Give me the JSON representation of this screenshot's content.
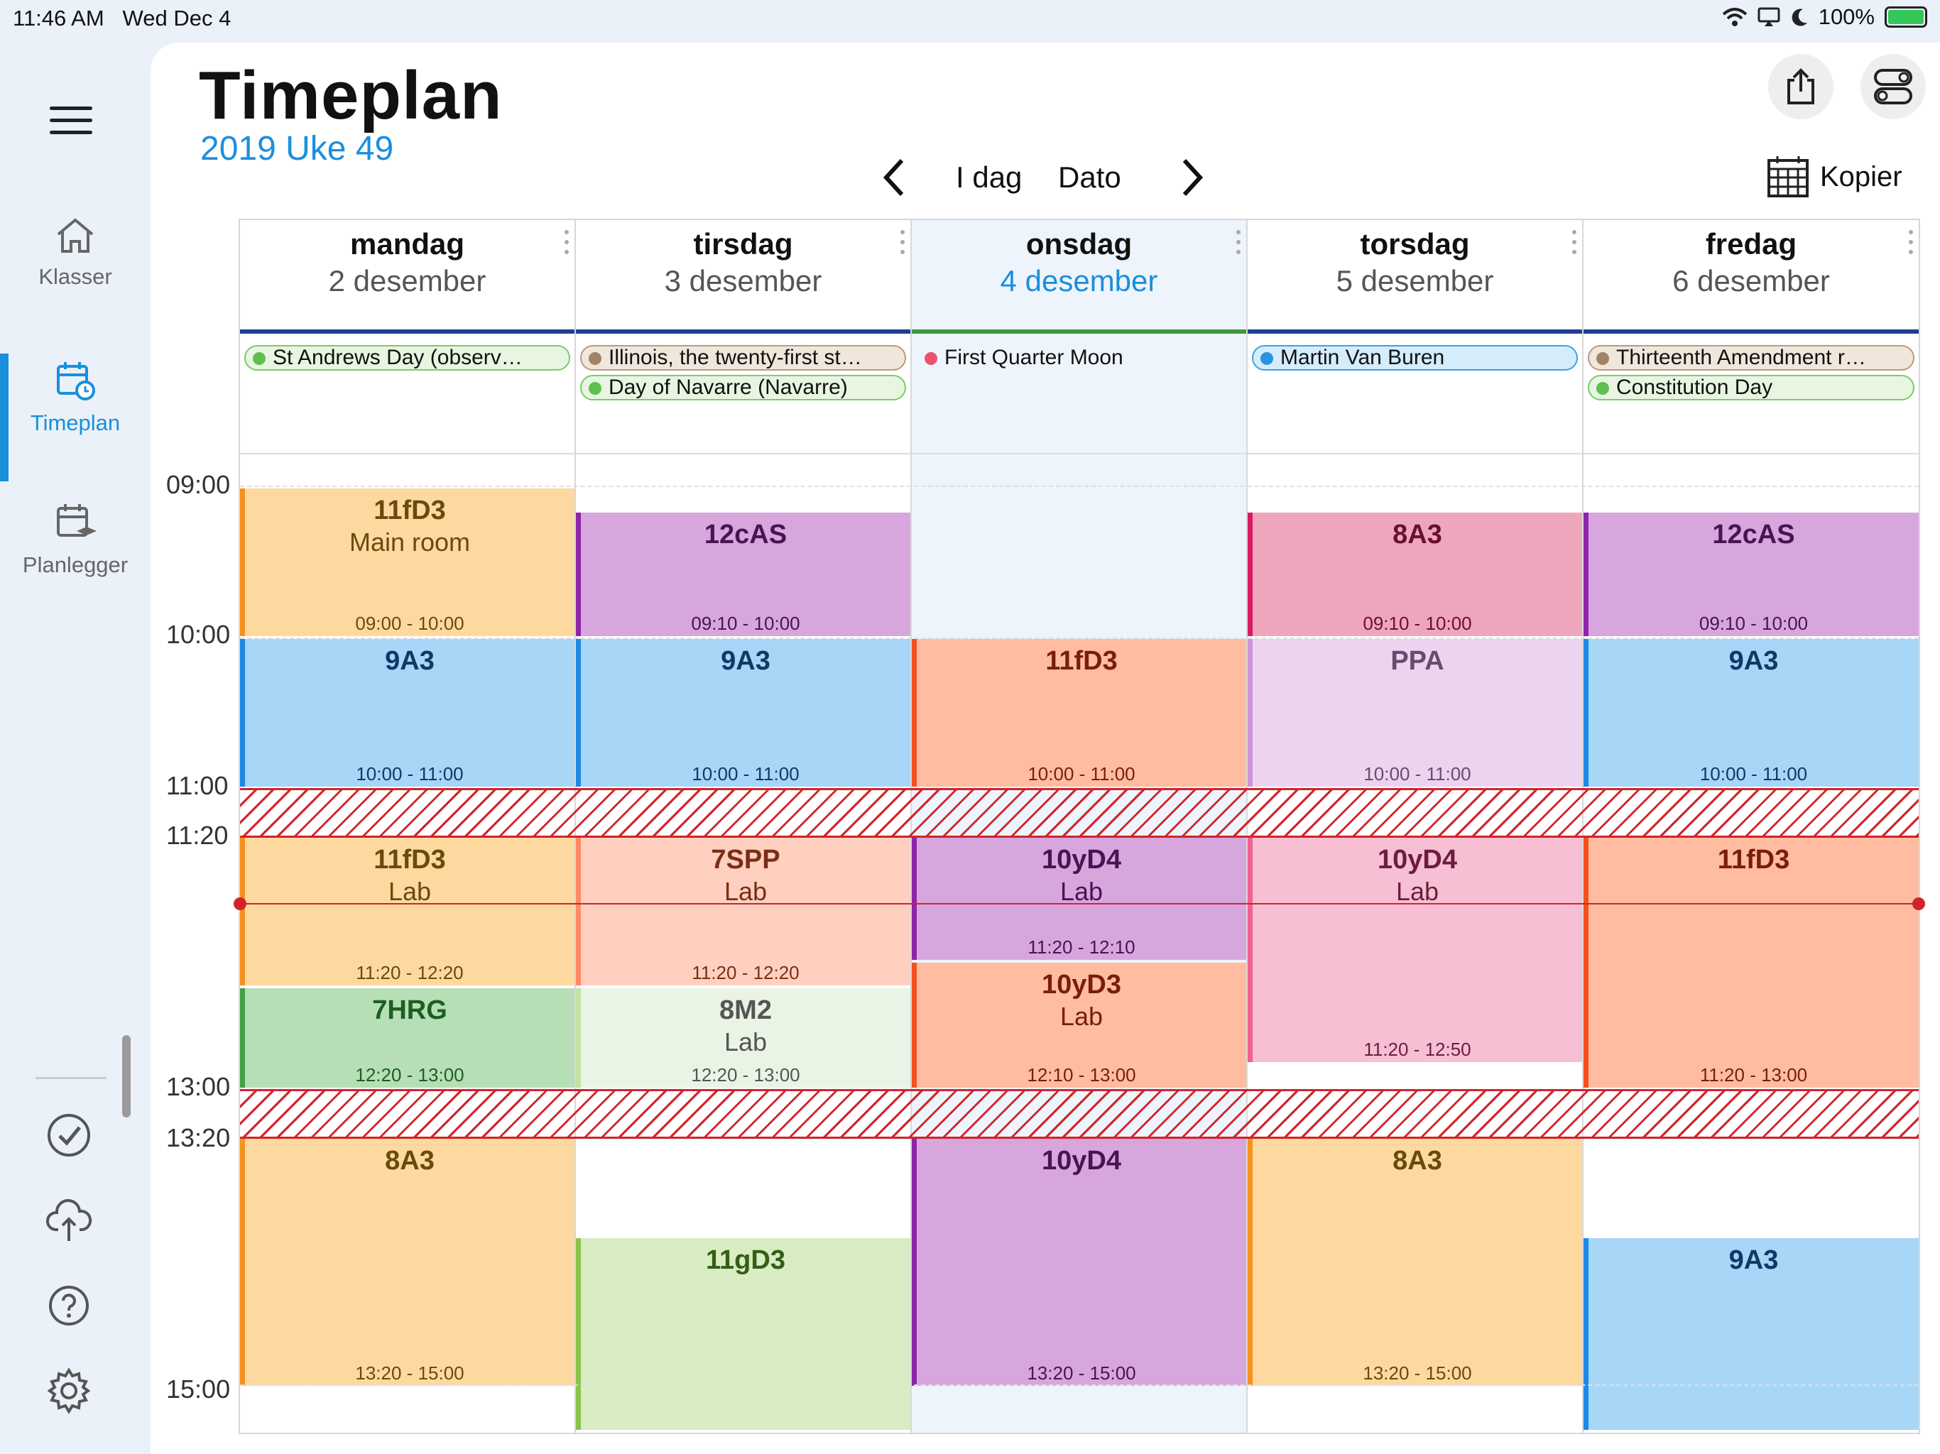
{
  "status": {
    "time": "11:46 AM",
    "date": "Wed Dec 4",
    "battery": "100%"
  },
  "sidebar": {
    "items": [
      {
        "label": "Klasser",
        "icon": "home-icon"
      },
      {
        "label": "Timeplan",
        "icon": "calendar-clock-icon"
      },
      {
        "label": "Planlegger",
        "icon": "calendar-cap-icon"
      }
    ]
  },
  "header": {
    "title": "Timeplan",
    "subtitle": "2019 Uke 49"
  },
  "nav": {
    "today": "I dag",
    "date": "Dato",
    "copy": "Kopier"
  },
  "times": [
    "09:00",
    "10:00",
    "11:00",
    "11:20",
    "13:00",
    "13:20",
    "15:00"
  ],
  "days": [
    {
      "name": "mandag",
      "date": "2 desember",
      "allday": [
        {
          "label": "St Andrews Day (observ…"
        }
      ],
      "events": [
        {
          "title": "11fD3",
          "sub": "Main room",
          "time": "09:00 - 10:00"
        },
        {
          "title": "9A3",
          "sub": "",
          "time": "10:00 - 11:00"
        },
        {
          "title": "11fD3",
          "sub": "Lab",
          "time": "11:20 - 12:20"
        },
        {
          "title": "7HRG",
          "sub": "",
          "time": "12:20 - 13:00"
        },
        {
          "title": "8A3",
          "sub": "",
          "time": "13:20 - 15:00"
        }
      ]
    },
    {
      "name": "tirsdag",
      "date": "3 desember",
      "allday": [
        {
          "label": "Illinois, the twenty-first st…"
        },
        {
          "label": "Day of Navarre (Navarre)"
        }
      ],
      "events": [
        {
          "title": "12cAS",
          "sub": "",
          "time": "09:10 - 10:00"
        },
        {
          "title": "9A3",
          "sub": "",
          "time": "10:00 - 11:00"
        },
        {
          "title": "7SPP",
          "sub": "Lab",
          "time": "11:20 - 12:20"
        },
        {
          "title": "8M2",
          "sub": "Lab",
          "time": "12:20 - 13:00"
        },
        {
          "title": "11gD3",
          "sub": "",
          "time": ""
        }
      ]
    },
    {
      "name": "onsdag",
      "date": "4 desember",
      "allday": [
        {
          "label": "First Quarter Moon"
        }
      ],
      "events": [
        {
          "title": "11fD3",
          "sub": "",
          "time": "10:00 - 11:00"
        },
        {
          "title": "10yD4",
          "sub": "Lab",
          "time": "11:20 - 12:10"
        },
        {
          "title": "10yD3",
          "sub": "Lab",
          "time": "12:10 - 13:00"
        },
        {
          "title": "10yD4",
          "sub": "",
          "time": "13:20 - 15:00"
        }
      ]
    },
    {
      "name": "torsdag",
      "date": "5 desember",
      "allday": [
        {
          "label": "Martin Van Buren"
        }
      ],
      "events": [
        {
          "title": "8A3",
          "sub": "",
          "time": "09:10 - 10:00"
        },
        {
          "title": "PPA",
          "sub": "",
          "time": "10:00 - 11:00"
        },
        {
          "title": "10yD4",
          "sub": "Lab",
          "time": "11:20 - 12:50"
        },
        {
          "title": "8A3",
          "sub": "",
          "time": "13:20 - 15:00"
        }
      ]
    },
    {
      "name": "fredag",
      "date": "6 desember",
      "allday": [
        {
          "label": "Thirteenth Amendment r…"
        },
        {
          "label": "Constitution Day"
        }
      ],
      "events": [
        {
          "title": "12cAS",
          "sub": "",
          "time": "09:10 - 10:00"
        },
        {
          "title": "9A3",
          "sub": "",
          "time": "10:00 - 11:00"
        },
        {
          "title": "11fD3",
          "sub": "",
          "time": "11:20 - 13:00"
        },
        {
          "title": "9A3",
          "sub": "",
          "time": ""
        }
      ]
    }
  ],
  "colors": {
    "accent": "#1a8fdc",
    "break": "#d0242a",
    "orange_bg": "#fdd9a0",
    "orange_bar": "#f6921e",
    "purple_bg": "#d7a6dd",
    "purple_bar": "#8e24aa",
    "blue_bg": "#a7d6f7",
    "blue_bar": "#1e88e5",
    "salmon_bg": "#ffbca1",
    "salmon_bar": "#f4511e",
    "pink_bg": "#eea6bd",
    "pink_bar": "#d81b60",
    "lavender_bg": "#ecd4ee",
    "lavender_bar": "#ce93d8",
    "green_bg": "#b6dfb8",
    "green_bar": "#43a047",
    "palegreen_bg": "#e9f4e5",
    "palegreen_bar": "#c5e1a5",
    "lightgreen_bg": "#d9ecc4",
    "lightgreen_bar": "#8bc34a",
    "peach_bg": "#ffd0c0",
    "peach_bar": "#ff8a65",
    "lightpink_bg": "#f7bfd4",
    "lightpink_bar": "#f06292"
  }
}
